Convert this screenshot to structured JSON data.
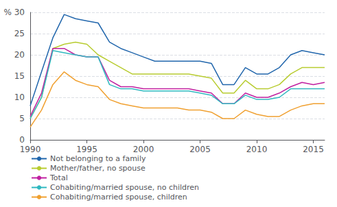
{
  "chart_data": {
    "type": "line",
    "x": [
      1990,
      1991,
      1992,
      1993,
      1994,
      1995,
      1996,
      1997,
      1998,
      1999,
      2000,
      2001,
      2002,
      2003,
      2004,
      2005,
      2006,
      2007,
      2008,
      2009,
      2010,
      2011,
      2012,
      2013,
      2014,
      2015,
      2016
    ],
    "series": [
      {
        "name": "Not belonging to a family",
        "color": "#2166ac",
        "values": [
          8.0,
          16.0,
          24.0,
          29.5,
          28.5,
          28.0,
          27.5,
          23.0,
          21.5,
          20.5,
          19.5,
          18.5,
          18.5,
          18.5,
          18.5,
          18.5,
          18.0,
          13.0,
          13.0,
          17.0,
          15.5,
          15.5,
          17.0,
          20.0,
          21.0,
          20.5,
          20.0
        ]
      },
      {
        "name": "Mother/father, no spouse",
        "color": "#b8cc30",
        "values": [
          5.0,
          10.0,
          21.5,
          22.5,
          23.0,
          22.5,
          20.0,
          18.5,
          17.0,
          15.5,
          15.5,
          15.5,
          15.5,
          15.5,
          15.5,
          15.0,
          14.5,
          11.0,
          11.0,
          14.0,
          12.0,
          12.0,
          13.0,
          15.5,
          17.0,
          17.0,
          17.0
        ]
      },
      {
        "name": "Total",
        "color": "#c020a0",
        "values": [
          5.5,
          11.0,
          21.5,
          21.5,
          20.0,
          19.5,
          19.5,
          14.0,
          12.5,
          12.5,
          12.0,
          12.0,
          12.0,
          12.0,
          12.0,
          11.5,
          11.0,
          8.5,
          8.5,
          11.0,
          10.0,
          10.0,
          11.0,
          12.5,
          13.5,
          13.0,
          13.5
        ]
      },
      {
        "name": "Cohabiting/married spouse, no children",
        "color": "#30b8c0",
        "values": [
          5.0,
          10.0,
          21.0,
          20.5,
          20.0,
          19.5,
          19.5,
          13.0,
          12.0,
          12.0,
          11.5,
          11.5,
          11.5,
          11.5,
          11.5,
          11.0,
          10.5,
          8.5,
          8.5,
          10.5,
          9.5,
          9.5,
          10.0,
          12.0,
          12.0,
          12.0,
          12.0
        ]
      },
      {
        "name": "Cohabiting/married spouse, children",
        "color": "#f0a030",
        "values": [
          3.0,
          7.0,
          13.0,
          16.0,
          14.0,
          13.0,
          12.5,
          9.5,
          8.5,
          8.0,
          7.5,
          7.5,
          7.5,
          7.5,
          7.0,
          7.0,
          6.5,
          5.0,
          5.0,
          7.0,
          6.0,
          5.5,
          5.5,
          7.0,
          8.0,
          8.5,
          8.5
        ]
      }
    ],
    "xlim": [
      1990,
      2016
    ],
    "xticks": [
      1990,
      1995,
      2000,
      2005,
      2010,
      2015
    ],
    "ylim": [
      0,
      30
    ],
    "yticks": [
      0,
      5,
      10,
      15,
      20,
      25,
      {
        "value": 30,
        "label": "% 30"
      }
    ],
    "grid": true
  }
}
